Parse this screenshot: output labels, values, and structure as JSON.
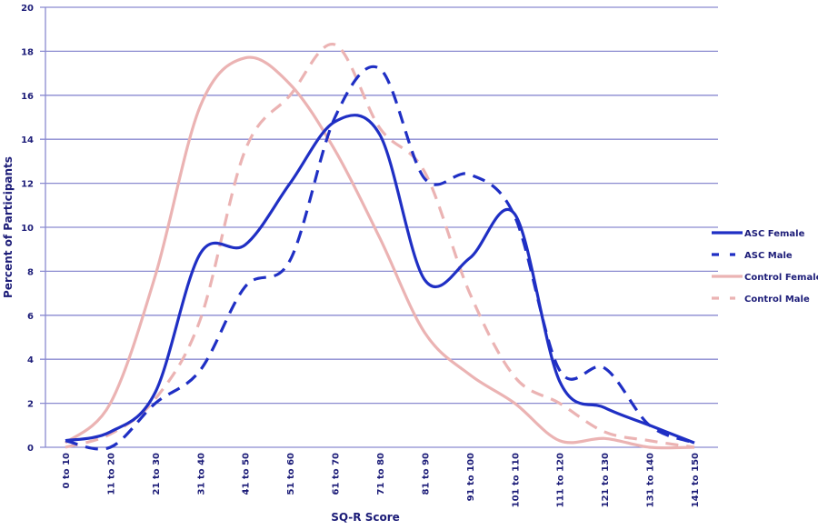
{
  "chart_data": {
    "type": "line",
    "title": "",
    "xlabel": "SQ-R Score",
    "ylabel": "Percent of Participants",
    "ylim": [
      0,
      20
    ],
    "yticks": [
      0,
      2,
      4,
      6,
      8,
      10,
      12,
      14,
      16,
      18,
      20
    ],
    "grid": true,
    "legend_position": "right",
    "categories": [
      "0 to 10",
      "11 to 20",
      "21 to 30",
      "31 to 40",
      "41 to 50",
      "51 to 60",
      "61 to 70",
      "71 to 80",
      "81 to 90",
      "91 to 100",
      "101 to 110",
      "111 to 120",
      "121 to 130",
      "131 to 140",
      "141 to 150"
    ],
    "series": [
      {
        "name": "ASC Female",
        "color": "#1f2fc4",
        "dash": false,
        "values": [
          0.3,
          0.7,
          2.5,
          8.8,
          9.2,
          12,
          14.8,
          14.2,
          7.6,
          8.6,
          10.6,
          3,
          1.8,
          1,
          0.2
        ]
      },
      {
        "name": "ASC Male",
        "color": "#1f2fc4",
        "dash": true,
        "values": [
          0.3,
          0,
          2,
          3.5,
          7.3,
          8.5,
          15,
          17.2,
          12.2,
          12.4,
          10.5,
          3.5,
          3.6,
          1,
          0.2
        ]
      },
      {
        "name": "Control Female",
        "color": "#ebb3b3",
        "dash": false,
        "values": [
          0.2,
          2,
          7.8,
          15.5,
          17.7,
          16.5,
          13.5,
          9.5,
          5.2,
          3.3,
          2,
          0.3,
          0.4,
          0,
          0
        ]
      },
      {
        "name": "Control Male",
        "color": "#ebb3b3",
        "dash": true,
        "values": [
          0,
          0.6,
          2.2,
          5.8,
          13.5,
          16,
          18.3,
          14.5,
          12.5,
          7,
          3.2,
          2,
          0.7,
          0.3,
          0
        ]
      }
    ]
  }
}
